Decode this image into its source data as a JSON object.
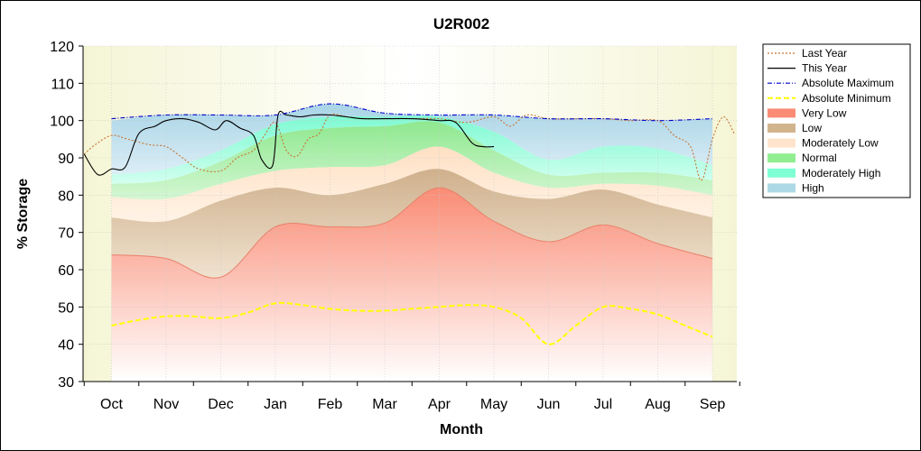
{
  "chart_data": {
    "type": "area",
    "title": "U2R002",
    "xlabel": "Month",
    "ylabel": "% Storage",
    "ylim": [
      30,
      120
    ],
    "yticks": [
      30,
      40,
      50,
      60,
      70,
      80,
      90,
      100,
      110,
      120
    ],
    "months": [
      "Oct",
      "Nov",
      "Dec",
      "Jan",
      "Feb",
      "Mar",
      "Apr",
      "May",
      "Jun",
      "Jul",
      "Aug",
      "Sep"
    ],
    "grid": true,
    "legend_position": "top-right",
    "band_boundaries": {
      "x": [
        0.0,
        1.0,
        2.0,
        3.0,
        4.0,
        5.0,
        6.0,
        7.0,
        8.0,
        9.0,
        10.0,
        11.0
      ],
      "very_low_top": [
        64,
        63,
        58,
        71.5,
        71.5,
        72.5,
        82,
        73,
        67.5,
        72,
        67,
        63
      ],
      "low_top": [
        74,
        73,
        78.5,
        82,
        80,
        83,
        87,
        81,
        79,
        81.5,
        77.5,
        74
      ],
      "moderately_low_top": [
        79.5,
        79,
        83,
        86.5,
        87.5,
        88,
        93,
        86,
        82,
        83,
        82.5,
        80
      ],
      "normal_top": [
        83,
        84,
        89,
        96,
        98,
        98.5,
        99.5,
        92,
        85.5,
        86,
        86,
        84
      ],
      "moderately_high_top": [
        85.5,
        87,
        92,
        99,
        101,
        101,
        101,
        97,
        89.5,
        93,
        92.5,
        88
      ],
      "high_top": [
        100,
        101.5,
        101.5,
        101.5,
        104.5,
        102,
        101.5,
        101.5,
        100.5,
        100.5,
        100,
        100.5
      ]
    },
    "series": [
      {
        "name": "Last Year",
        "color": "#c87533",
        "style": "dotted",
        "x": [
          -0.5,
          -0.3,
          0.0,
          0.3,
          0.7,
          1.0,
          1.3,
          1.6,
          2.0,
          2.3,
          2.6,
          2.8,
          3.0,
          3.2,
          3.4,
          3.6,
          3.8,
          4.0,
          4.3,
          4.6,
          5.0,
          5.5,
          6.0,
          6.5,
          7.0,
          7.3,
          7.6,
          8.0,
          8.5,
          9.0,
          9.5,
          10.0,
          10.3,
          10.6,
          10.8,
          11.0,
          11.2,
          11.4
        ],
        "y": [
          91,
          93.5,
          96,
          95,
          93.5,
          93,
          90,
          87,
          86.5,
          90,
          92,
          96,
          99.5,
          92,
          90.5,
          95,
          96.5,
          101.5,
          101,
          100.5,
          100.5,
          100.5,
          100.5,
          99.5,
          101,
          98.5,
          101.5,
          100.5,
          100.5,
          100.5,
          100,
          100,
          96,
          93,
          84,
          95,
          101,
          96.5
        ]
      },
      {
        "name": "This Year",
        "color": "#000000",
        "style": "solid",
        "x": [
          -0.5,
          -0.25,
          0.0,
          0.25,
          0.5,
          0.8,
          1.0,
          1.3,
          1.6,
          1.9,
          2.1,
          2.35,
          2.6,
          2.75,
          2.95,
          3.05,
          3.2,
          3.45,
          3.7,
          4.0,
          4.3,
          4.6,
          5.0,
          5.5,
          6.0,
          6.3,
          6.6,
          6.8,
          7.0
        ],
        "y": [
          91,
          85.5,
          87,
          87.5,
          96.5,
          98.5,
          100,
          100.5,
          99.5,
          97.5,
          100,
          98,
          96,
          89.5,
          88,
          101.5,
          101.5,
          101,
          101.5,
          101.5,
          101,
          100.5,
          100.5,
          100.5,
          100,
          99.5,
          94,
          93,
          93
        ]
      },
      {
        "name": "Absolute Maximum",
        "color": "#0000cc",
        "style": "dashdot",
        "x": [
          0.0,
          1.0,
          2.0,
          3.0,
          4.0,
          5.0,
          6.0,
          7.0,
          8.0,
          9.0,
          10.0,
          11.0
        ],
        "y": [
          100.5,
          101.5,
          101.5,
          101.5,
          104.5,
          102,
          101.5,
          101.5,
          100.5,
          100.5,
          100,
          100.5
        ]
      },
      {
        "name": "Absolute Minimum",
        "color": "#ffff00",
        "style": "dashed",
        "x": [
          0.0,
          0.5,
          1.0,
          1.5,
          2.0,
          2.5,
          3.0,
          3.5,
          4.0,
          4.5,
          5.0,
          5.5,
          6.0,
          6.5,
          7.0,
          7.5,
          8.0,
          8.5,
          9.0,
          9.5,
          10.0,
          10.5,
          11.0
        ],
        "y": [
          45,
          46.5,
          47.5,
          47.5,
          47,
          48.5,
          51,
          50.5,
          49.5,
          49,
          49,
          49.5,
          50,
          50.5,
          50,
          47,
          40,
          45,
          50,
          49.5,
          48,
          45,
          42
        ]
      }
    ],
    "legend": [
      {
        "label": "Last Year",
        "kind": "line",
        "color": "#c87533",
        "style": "dotted"
      },
      {
        "label": "This Year",
        "kind": "line",
        "color": "#000000",
        "style": "solid"
      },
      {
        "label": "Absolute Maximum",
        "kind": "line",
        "color": "#0000cc",
        "style": "dashdot"
      },
      {
        "label": "Absolute Minimum",
        "kind": "line",
        "color": "#ffff00",
        "style": "dashed"
      },
      {
        "label": "Very Low",
        "kind": "band",
        "color": "#fa8c75"
      },
      {
        "label": "Low",
        "kind": "band",
        "color": "#d2b48c"
      },
      {
        "label": "Moderately Low",
        "kind": "band",
        "color": "#ffe4cc"
      },
      {
        "label": "Normal",
        "kind": "band",
        "color": "#90ee90"
      },
      {
        "label": "Moderately High",
        "kind": "band",
        "color": "#7fffd4"
      },
      {
        "label": "High",
        "kind": "band",
        "color": "#add8e6"
      }
    ],
    "colors": {
      "plot_background": "#fffff0",
      "very_low": "#fa8c75",
      "low": "#d2b48c",
      "moderately_low": "#ffe4cc",
      "normal": "#90ee90",
      "moderately_high": "#7fffd4",
      "high": "#add8e6"
    }
  }
}
